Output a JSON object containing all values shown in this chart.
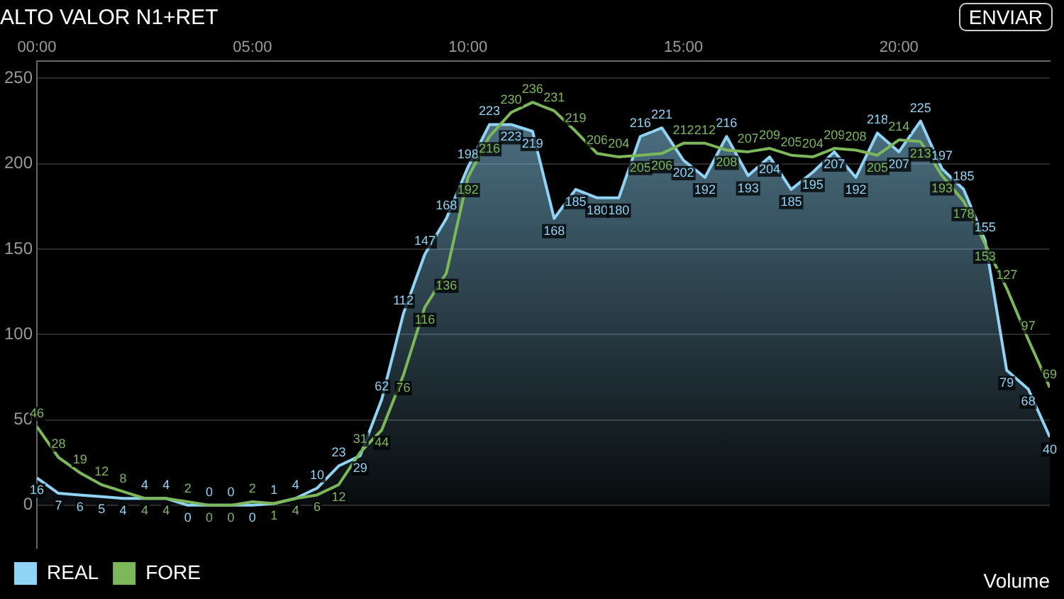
{
  "chart_data": {
    "type": "line",
    "title": "ALTO VALOR N1+RET",
    "x": [
      0,
      0.5,
      1,
      1.5,
      2,
      2.5,
      3,
      3.5,
      4,
      4.5,
      5,
      5.5,
      6,
      6.5,
      7,
      7.5,
      8,
      8.5,
      9,
      9.5,
      10,
      10.5,
      11,
      11.5,
      12,
      12.5,
      13,
      13.5,
      14,
      14.5,
      15,
      15.5,
      16,
      16.5,
      17,
      17.5,
      18,
      18.5,
      19,
      19.5,
      20,
      20.5,
      21,
      21.5,
      22,
      22.5,
      23,
      23.5
    ],
    "series": [
      {
        "name": "REAL",
        "type": "area",
        "color": "#8fd3f5",
        "values": [
          16,
          7,
          6,
          5,
          4,
          4,
          4,
          0,
          0,
          0,
          0,
          1,
          4,
          10,
          23,
          29,
          62,
          112,
          147,
          168,
          198,
          223,
          223,
          219,
          168,
          185,
          180,
          180,
          216,
          221,
          202,
          192,
          216,
          193,
          204,
          185,
          195,
          207,
          192,
          218,
          207,
          225,
          197,
          185,
          155,
          79,
          68,
          40
        ]
      },
      {
        "name": "FORE",
        "type": "line",
        "color": "#7cb85a",
        "values": [
          46,
          28,
          19,
          12,
          8,
          4,
          4,
          2,
          0,
          0,
          2,
          1,
          4,
          6,
          12,
          31,
          44,
          76,
          116,
          136,
          192,
          216,
          230,
          236,
          231,
          219,
          206,
          204,
          205,
          206,
          212,
          212,
          208,
          207,
          209,
          205,
          204,
          209,
          208,
          205,
          214,
          213,
          193,
          178,
          153,
          127,
          97,
          69
        ]
      }
    ],
    "xlim": [
      0,
      23.5
    ],
    "xticks": [
      {
        "value": 0,
        "label": "00:00"
      },
      {
        "value": 5,
        "label": "05:00"
      },
      {
        "value": 10,
        "label": "10:00"
      },
      {
        "value": 15,
        "label": "15:00"
      },
      {
        "value": 20,
        "label": "20:00"
      }
    ],
    "ylim": [
      -25,
      260
    ],
    "yticks": [
      0,
      50,
      100,
      150,
      200,
      250
    ],
    "grid": "y",
    "legend": "bottom left",
    "marker": "none",
    "data_labels": true,
    "annotations": [
      "ENVIAR",
      "Volume"
    ]
  }
}
